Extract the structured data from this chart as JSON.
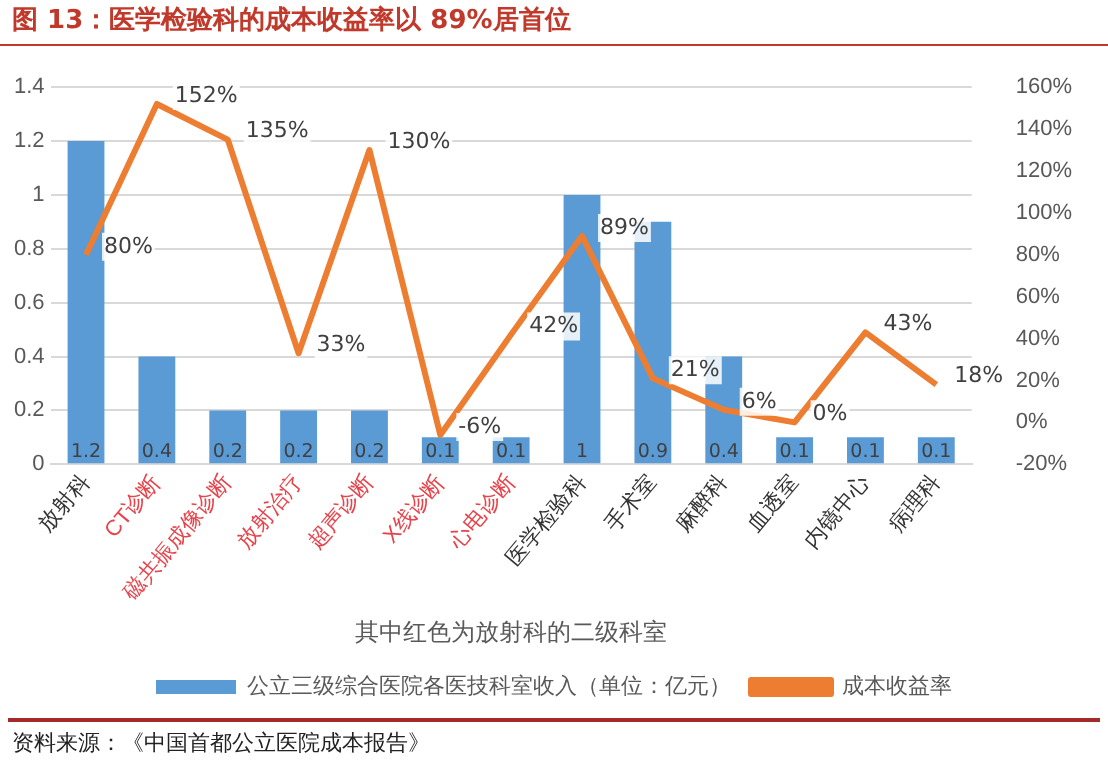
{
  "chart_data": {
    "type": "bar",
    "title": "图 13：医学检验科的成本收益率以 89%居首位",
    "xlabel": "其中红色为放射科的二级科室",
    "categories": [
      "放射科",
      "CT诊断",
      "磁共振成像诊断",
      "放射治疗",
      "超声诊断",
      "X线诊断",
      "心电诊断",
      "医学检验科",
      "手术室",
      "麻醉科",
      "血透室",
      "内镜中心",
      "病理科"
    ],
    "series": [
      {
        "name": "公立三级综合医院各医技科室收入（单位：亿元）",
        "type": "bar",
        "color": "#5b9bd5",
        "values": [
          1.2,
          0.4,
          0.2,
          0.2,
          0.2,
          0.1,
          0.1,
          1,
          0.9,
          0.4,
          0.1,
          0.1,
          0.1
        ],
        "value_labels": [
          "1.2",
          "0.4",
          "0.2",
          "0.2",
          "0.2",
          "0.1",
          "0.1",
          "1",
          "0.9",
          "0.4",
          "0.1",
          "0.1",
          "0.1"
        ]
      },
      {
        "name": "成本收益率",
        "type": "line",
        "axis": "y2",
        "color": "#ed7d31",
        "values": [
          80,
          152,
          135,
          33,
          130,
          -6,
          42,
          89,
          21,
          6,
          0,
          43,
          18
        ],
        "value_labels": [
          "80%",
          "152%",
          "135%",
          "33%",
          "130%",
          "-6%",
          "42%",
          "89%",
          "21%",
          "6%",
          "0%",
          "43%",
          "18%"
        ]
      }
    ],
    "ylim": [
      0,
      1.4
    ],
    "yticks": [
      0,
      0.2,
      0.4,
      0.6,
      0.8,
      1,
      1.2,
      1.4
    ],
    "y2lim": [
      -20,
      160
    ],
    "y2ticks": [
      {
        "value": -20,
        "label": "-20%"
      },
      {
        "value": 0,
        "label": "0%"
      },
      {
        "value": 20,
        "label": "20%"
      },
      {
        "value": 40,
        "label": "40%"
      },
      {
        "value": 60,
        "label": "60%"
      },
      {
        "value": 80,
        "label": "80%"
      },
      {
        "value": 100,
        "label": "100%"
      },
      {
        "value": 120,
        "label": "120%"
      },
      {
        "value": 140,
        "label": "140%"
      },
      {
        "value": 160,
        "label": "160%"
      }
    ],
    "grid": "y",
    "legend": "bottom",
    "marker": "none",
    "line_style": "solid",
    "annotations": [
      "资料来源：《中国首都公立医院成本报告》"
    ]
  }
}
